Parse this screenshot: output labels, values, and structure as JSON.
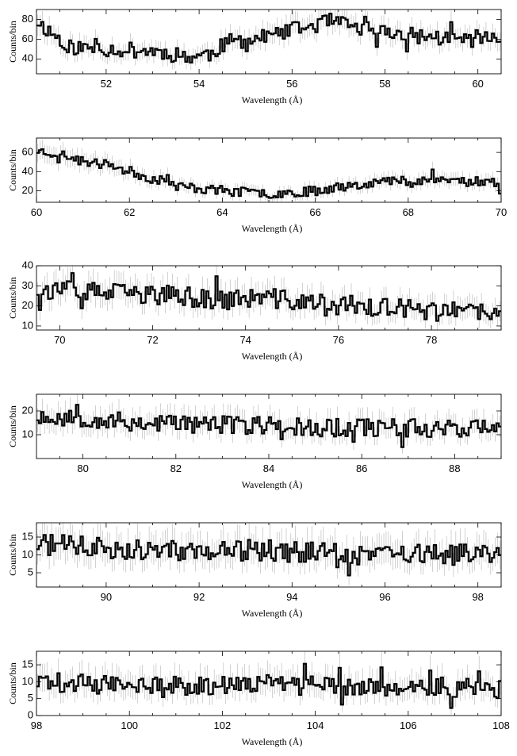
{
  "chart_data": [
    {
      "type": "line",
      "style": "step-histogram with error bars",
      "xlabel": "Wavelength (Å)",
      "ylabel": "Counts/bin",
      "xlim": [
        50.5,
        60.5
      ],
      "ylim": [
        25,
        90
      ],
      "xticks": [
        52,
        54,
        56,
        58,
        60
      ],
      "yticks": [
        40,
        60,
        80
      ],
      "bin_width": 0.05,
      "anchors": [
        [
          50.5,
          78
        ],
        [
          50.7,
          70
        ],
        [
          51.2,
          52
        ],
        [
          52.0,
          50
        ],
        [
          53.0,
          48
        ],
        [
          53.8,
          42
        ],
        [
          54.2,
          45
        ],
        [
          54.6,
          57
        ],
        [
          55.4,
          62
        ],
        [
          56.8,
          78
        ],
        [
          57.5,
          70
        ],
        [
          58.5,
          64
        ],
        [
          59.5,
          60
        ],
        [
          60.5,
          60
        ]
      ],
      "noise": 8,
      "seed": 11
    },
    {
      "type": "line",
      "style": "step-histogram with error bars",
      "xlabel": "Wavelength (Å)",
      "ylabel": "Counts/bin",
      "xlim": [
        60,
        70
      ],
      "ylim": [
        8,
        75
      ],
      "xticks": [
        60,
        62,
        64,
        66,
        68,
        70
      ],
      "yticks": [
        20,
        40,
        60
      ],
      "bin_width": 0.05,
      "anchors": [
        [
          60.0,
          62
        ],
        [
          60.5,
          58
        ],
        [
          61.0,
          50
        ],
        [
          61.5,
          47
        ],
        [
          62.0,
          40
        ],
        [
          62.5,
          32
        ],
        [
          63.0,
          25
        ],
        [
          64.0,
          20
        ],
        [
          65.0,
          17
        ],
        [
          66.0,
          20
        ],
        [
          66.5,
          25
        ],
        [
          67.5,
          30
        ],
        [
          68.5,
          32
        ],
        [
          69.5,
          30
        ],
        [
          70.0,
          28
        ]
      ],
      "noise": 5,
      "seed": 23
    },
    {
      "type": "line",
      "style": "step-histogram with error bars",
      "xlabel": "Wavelength (Å)",
      "ylabel": "Counts/bin",
      "xlim": [
        69.5,
        79.5
      ],
      "ylim": [
        8,
        40
      ],
      "xticks": [
        70,
        72,
        74,
        76,
        78
      ],
      "yticks": [
        10,
        20,
        30,
        40
      ],
      "bin_width": 0.05,
      "anchors": [
        [
          69.5,
          28
        ],
        [
          70.5,
          27
        ],
        [
          71.5,
          26
        ],
        [
          72.5,
          25
        ],
        [
          73.5,
          23
        ],
        [
          74.5,
          24
        ],
        [
          75.5,
          21
        ],
        [
          76.5,
          20
        ],
        [
          77.5,
          18
        ],
        [
          78.5,
          17
        ],
        [
          79.5,
          16
        ]
      ],
      "noise": 5,
      "seed": 37
    },
    {
      "type": "line",
      "style": "step-histogram with error bars",
      "xlabel": "Wavelength (Å)",
      "ylabel": "Counts/bin",
      "xlim": [
        79,
        89
      ],
      "ylim": [
        0,
        27
      ],
      "xticks": [
        80,
        82,
        84,
        86,
        88
      ],
      "yticks": [
        10,
        20
      ],
      "bin_width": 0.05,
      "anchors": [
        [
          79.0,
          18
        ],
        [
          80.0,
          17
        ],
        [
          81.0,
          15
        ],
        [
          82.0,
          15
        ],
        [
          83.0,
          14
        ],
        [
          84.0,
          14
        ],
        [
          85.0,
          13
        ],
        [
          86.0,
          13
        ],
        [
          87.0,
          13
        ],
        [
          88.0,
          13
        ],
        [
          89.0,
          13
        ]
      ],
      "noise": 4,
      "seed": 53
    },
    {
      "type": "line",
      "style": "step-histogram with error bars",
      "xlabel": "Wavelength (Å)",
      "ylabel": "Counts/bin",
      "xlim": [
        88.5,
        98.5
      ],
      "ylim": [
        1,
        19
      ],
      "xticks": [
        90,
        92,
        94,
        96,
        98
      ],
      "yticks": [
        5,
        10,
        15
      ],
      "bin_width": 0.05,
      "anchors": [
        [
          88.5,
          13
        ],
        [
          90.0,
          12
        ],
        [
          92.0,
          11
        ],
        [
          94.0,
          11
        ],
        [
          96.0,
          10
        ],
        [
          98.5,
          10
        ]
      ],
      "noise": 3,
      "seed": 71
    },
    {
      "type": "line",
      "style": "step-histogram with error bars",
      "xlabel": "Wavelength (Å)",
      "ylabel": "Counts/bin",
      "xlim": [
        98,
        108
      ],
      "ylim": [
        0,
        19
      ],
      "xticks": [
        98,
        100,
        102,
        104,
        106,
        108
      ],
      "yticks": [
        0,
        5,
        10,
        15
      ],
      "bin_width": 0.05,
      "anchors": [
        [
          98.0,
          10
        ],
        [
          100.0,
          9
        ],
        [
          102.0,
          9
        ],
        [
          104.0,
          9
        ],
        [
          106.0,
          8
        ],
        [
          108.0,
          8
        ]
      ],
      "noise": 3,
      "seed": 89
    }
  ]
}
